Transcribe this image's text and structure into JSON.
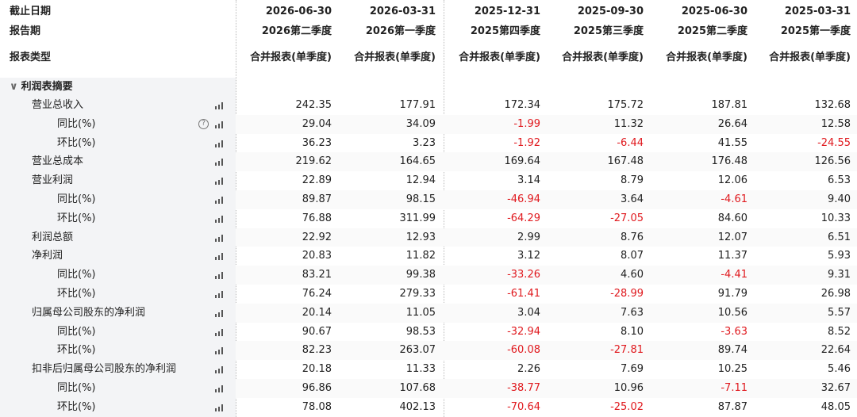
{
  "header": {
    "labels": [
      "截止日期",
      "报告期",
      "报表类型"
    ],
    "columns": [
      {
        "date": "2026-06-30",
        "period": "2026第二季度",
        "type": "合并报表(单季度)"
      },
      {
        "date": "2026-03-31",
        "period": "2026第一季度",
        "type": "合并报表(单季度)"
      },
      {
        "date": "2025-12-31",
        "period": "2025第四季度",
        "type": "合并报表(单季度)"
      },
      {
        "date": "2025-09-30",
        "period": "2025第三季度",
        "type": "合并报表(单季度)"
      },
      {
        "date": "2025-06-30",
        "period": "2025第二季度",
        "type": "合并报表(单季度)"
      },
      {
        "date": "2025-03-31",
        "period": "2025第一季度",
        "type": "合并报表(单季度)"
      }
    ]
  },
  "section": {
    "title": "利润表摘要",
    "rows": [
      {
        "label": "营业总收入",
        "values": [
          "242.35",
          "177.91",
          "172.34",
          "175.72",
          "187.81",
          "132.68"
        ]
      },
      {
        "label": "同比(%)",
        "values": [
          "29.04",
          "34.09",
          "-1.99",
          "11.32",
          "26.64",
          "12.58"
        ]
      },
      {
        "label": "环比(%)",
        "values": [
          "36.23",
          "3.23",
          "-1.92",
          "-6.44",
          "41.55",
          "-24.55"
        ]
      },
      {
        "label": "营业总成本",
        "values": [
          "219.62",
          "164.65",
          "169.64",
          "167.48",
          "176.48",
          "126.56"
        ]
      },
      {
        "label": "营业利润",
        "values": [
          "22.89",
          "12.94",
          "3.14",
          "8.79",
          "12.06",
          "6.53"
        ]
      },
      {
        "label": "同比(%)",
        "values": [
          "89.87",
          "98.15",
          "-46.94",
          "3.64",
          "-4.61",
          "9.40"
        ]
      },
      {
        "label": "环比(%)",
        "values": [
          "76.88",
          "311.99",
          "-64.29",
          "-27.05",
          "84.60",
          "10.33"
        ]
      },
      {
        "label": "利润总额",
        "values": [
          "22.92",
          "12.93",
          "2.99",
          "8.76",
          "12.07",
          "6.51"
        ]
      },
      {
        "label": "净利润",
        "values": [
          "20.83",
          "11.82",
          "3.12",
          "8.07",
          "11.37",
          "5.93"
        ]
      },
      {
        "label": "同比(%)",
        "values": [
          "83.21",
          "99.38",
          "-33.26",
          "4.60",
          "-4.41",
          "9.31"
        ]
      },
      {
        "label": "环比(%)",
        "values": [
          "76.24",
          "279.33",
          "-61.41",
          "-28.99",
          "91.79",
          "26.98"
        ]
      },
      {
        "label": "归属母公司股东的净利润",
        "values": [
          "20.14",
          "11.05",
          "3.04",
          "7.63",
          "10.56",
          "5.57"
        ]
      },
      {
        "label": "同比(%)",
        "values": [
          "90.67",
          "98.53",
          "-32.94",
          "8.10",
          "-3.63",
          "8.52"
        ]
      },
      {
        "label": "环比(%)",
        "values": [
          "82.23",
          "263.07",
          "-60.08",
          "-27.81",
          "89.74",
          "22.64"
        ]
      },
      {
        "label": "扣非后归属母公司股东的净利润",
        "values": [
          "20.18",
          "11.33",
          "2.26",
          "7.69",
          "10.25",
          "5.46"
        ]
      },
      {
        "label": "同比(%)",
        "values": [
          "96.86",
          "107.68",
          "-38.77",
          "10.96",
          "-7.11",
          "32.67"
        ]
      },
      {
        "label": "环比(%)",
        "values": [
          "78.08",
          "402.13",
          "-70.64",
          "-25.02",
          "87.87",
          "48.05"
        ]
      }
    ]
  }
}
